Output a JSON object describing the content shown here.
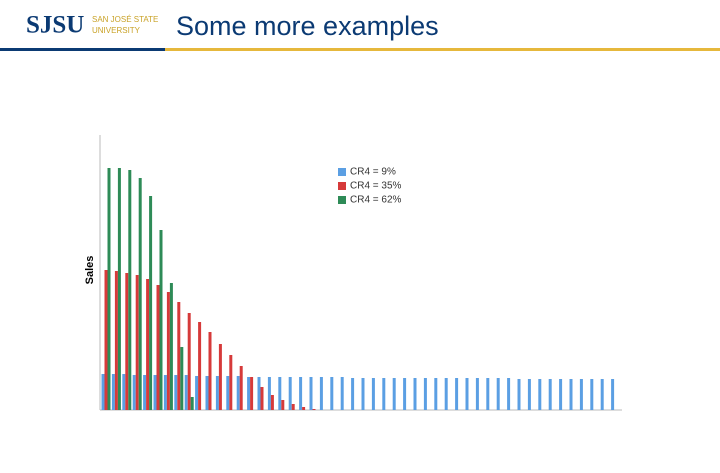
{
  "header": {
    "logo": "SJSU",
    "logo_line1": "SAN JOSÉ STATE",
    "logo_line2": "UNIVERSITY",
    "title": "Some more examples"
  },
  "chart_data": {
    "type": "bar",
    "ylabel": "Sales",
    "categories": [
      null,
      null,
      null,
      null,
      null,
      null,
      null,
      null,
      null,
      null,
      null,
      null,
      null,
      null,
      null,
      null,
      null,
      null,
      null,
      null,
      null,
      null,
      null,
      null,
      null,
      null,
      null,
      null,
      null,
      null,
      null,
      null,
      null,
      null,
      null,
      null,
      null,
      null,
      null,
      null,
      null,
      null,
      null,
      null,
      null,
      null,
      null,
      null,
      null,
      null
    ],
    "series": [
      {
        "name": "CR4 = 9%",
        "color": "#5b9fe3",
        "values": [
          36,
          36,
          36,
          35,
          35,
          35,
          35,
          35,
          35,
          34,
          34,
          34,
          34,
          34,
          33,
          33,
          33,
          33,
          33,
          33,
          33,
          33,
          33,
          33,
          32,
          32,
          32,
          32,
          32,
          32,
          32,
          32,
          32,
          32,
          32,
          32,
          32,
          32,
          32,
          32,
          31,
          31,
          31,
          31,
          31,
          31,
          31,
          31,
          31,
          31
        ]
      },
      {
        "name": "CR4 = 35%",
        "color": "#d63a3a",
        "values": [
          140,
          139,
          137,
          135,
          131,
          125,
          118,
          108,
          97,
          88,
          78,
          66,
          55,
          44,
          33,
          23,
          15,
          10,
          6,
          3,
          1,
          0,
          0,
          0,
          0,
          0,
          0,
          0,
          0,
          0,
          0,
          0,
          0,
          0,
          0,
          0,
          0,
          0,
          0,
          0,
          0,
          0,
          0,
          0,
          0,
          0,
          0,
          0,
          0,
          0
        ]
      },
      {
        "name": "CR4 = 62%",
        "color": "#2e8b57",
        "values": [
          242,
          242,
          240,
          232,
          214,
          180,
          127,
          63,
          13,
          0,
          0,
          0,
          0,
          0,
          0,
          0,
          0,
          0,
          0,
          0,
          0,
          0,
          0,
          0,
          0,
          0,
          0,
          0,
          0,
          0,
          0,
          0,
          0,
          0,
          0,
          0,
          0,
          0,
          0,
          0,
          0,
          0,
          0,
          0,
          0,
          0,
          0,
          0,
          0,
          0
        ]
      }
    ],
    "ylim": [
      0,
      250
    ],
    "legend": "top"
  }
}
